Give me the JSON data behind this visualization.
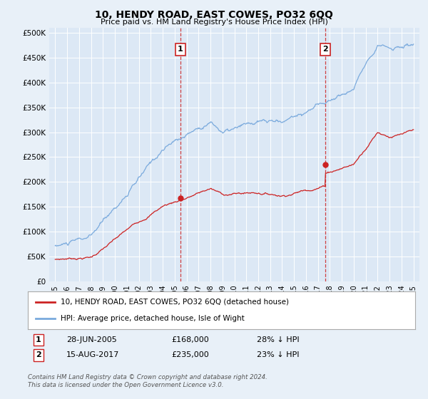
{
  "title": "10, HENDY ROAD, EAST COWES, PO32 6QQ",
  "subtitle": "Price paid vs. HM Land Registry's House Price Index (HPI)",
  "background_color": "#e8f0f8",
  "plot_bg_color": "#dce8f5",
  "grid_color": "#ffffff",
  "sale1": {
    "date": 2005.49,
    "price": 168000,
    "label": "1",
    "text": "28-JUN-2005",
    "price_text": "£168,000",
    "hpi_text": "28% ↓ HPI"
  },
  "sale2": {
    "date": 2017.62,
    "price": 235000,
    "label": "2",
    "text": "15-AUG-2017",
    "price_text": "£235,000",
    "hpi_text": "23% ↓ HPI"
  },
  "legend_line1": "10, HENDY ROAD, EAST COWES, PO32 6QQ (detached house)",
  "legend_line2": "HPI: Average price, detached house, Isle of Wight",
  "footer": "Contains HM Land Registry data © Crown copyright and database right 2024.\nThis data is licensed under the Open Government Licence v3.0.",
  "hpi_color": "#7aaadd",
  "sale_color": "#cc2222",
  "ylim": [
    0,
    510000
  ],
  "xlim_start": 1994.5,
  "xlim_end": 2025.5,
  "yticks": [
    0,
    50000,
    100000,
    150000,
    200000,
    250000,
    300000,
    350000,
    400000,
    450000,
    500000
  ],
  "ytick_labels": [
    "£0",
    "£50K",
    "£100K",
    "£150K",
    "£200K",
    "£250K",
    "£300K",
    "£350K",
    "£400K",
    "£450K",
    "£500K"
  ],
  "xticks": [
    1995,
    1996,
    1997,
    1998,
    1999,
    2000,
    2001,
    2002,
    2003,
    2004,
    2005,
    2006,
    2007,
    2008,
    2009,
    2010,
    2011,
    2012,
    2013,
    2014,
    2015,
    2016,
    2017,
    2018,
    2019,
    2020,
    2021,
    2022,
    2023,
    2024,
    2025
  ]
}
